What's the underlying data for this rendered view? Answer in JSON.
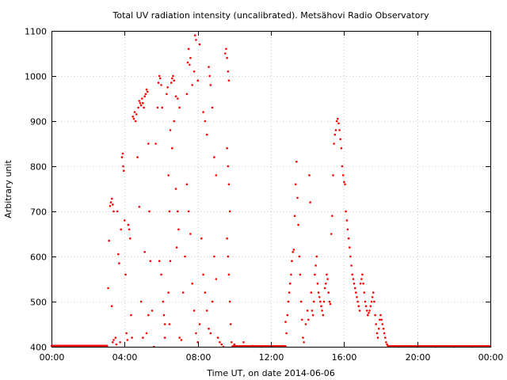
{
  "chart_data": {
    "type": "scatter",
    "title": "Total UV radiation intensity (uncalibrated). Metsähovi Radio Observatory",
    "xlabel": "Time UT, on date 2014-06-06",
    "ylabel": "Arbitrary unit",
    "xlim": [
      0,
      24
    ],
    "ylim": [
      400,
      1100
    ],
    "x_ticks": [
      0,
      4,
      8,
      12,
      16,
      20,
      24
    ],
    "x_tick_labels": [
      "00:00",
      "04:00",
      "08:00",
      "12:00",
      "16:00",
      "20:00",
      "00:00"
    ],
    "y_ticks": [
      400,
      500,
      600,
      700,
      800,
      900,
      1000,
      1100
    ],
    "y_tick_labels": [
      "400",
      "500",
      "600",
      "700",
      "800",
      "900",
      "1000",
      "1100"
    ],
    "grid": true,
    "marker_color": "#ff0000",
    "series": [
      {
        "points": [
          [
            3.1,
            530
          ],
          [
            3.15,
            635
          ],
          [
            3.2,
            712
          ],
          [
            3.25,
            720
          ],
          [
            3.3,
            728
          ],
          [
            3.35,
            715
          ],
          [
            3.4,
            700
          ],
          [
            3.3,
            490
          ],
          [
            3.35,
            410
          ],
          [
            3.4,
            415
          ],
          [
            3.5,
            420
          ],
          [
            3.55,
            405
          ],
          [
            3.6,
            700
          ],
          [
            3.65,
            605
          ],
          [
            3.7,
            585
          ],
          [
            3.75,
            410
          ],
          [
            3.8,
            660
          ],
          [
            3.85,
            820
          ],
          [
            3.9,
            828
          ],
          [
            3.92,
            800
          ],
          [
            3.95,
            790
          ],
          [
            4.0,
            680
          ],
          [
            4.05,
            560
          ],
          [
            4.1,
            430
          ],
          [
            4.15,
            415
          ],
          [
            4.2,
            670
          ],
          [
            4.25,
            660
          ],
          [
            4.3,
            640
          ],
          [
            4.35,
            470
          ],
          [
            4.4,
            420
          ],
          [
            4.45,
            910
          ],
          [
            4.5,
            905
          ],
          [
            4.55,
            920
          ],
          [
            4.6,
            900
          ],
          [
            4.65,
            915
          ],
          [
            4.7,
            820
          ],
          [
            4.75,
            930
          ],
          [
            4.8,
            945
          ],
          [
            4.85,
            940
          ],
          [
            4.9,
            935
          ],
          [
            4.95,
            950
          ],
          [
            5.0,
            940
          ],
          [
            5.05,
            930
          ],
          [
            5.1,
            955
          ],
          [
            5.15,
            960
          ],
          [
            5.2,
            970
          ],
          [
            5.25,
            965
          ],
          [
            5.3,
            850
          ],
          [
            5.35,
            700
          ],
          [
            5.4,
            590
          ],
          [
            4.8,
            710
          ],
          [
            4.9,
            500
          ],
          [
            5.0,
            420
          ],
          [
            5.1,
            610
          ],
          [
            5.2,
            430
          ],
          [
            5.3,
            470
          ],
          [
            5.5,
            480
          ],
          [
            5.6,
            400
          ],
          [
            5.7,
            850
          ],
          [
            5.8,
            930
          ],
          [
            5.85,
            985
          ],
          [
            5.9,
            1000
          ],
          [
            5.95,
            995
          ],
          [
            6.0,
            980
          ],
          [
            6.05,
            930
          ],
          [
            5.9,
            590
          ],
          [
            6.0,
            560
          ],
          [
            6.1,
            500
          ],
          [
            6.15,
            470
          ],
          [
            6.2,
            450
          ],
          [
            6.3,
            960
          ],
          [
            6.35,
            975
          ],
          [
            6.4,
            780
          ],
          [
            6.45,
            700
          ],
          [
            6.5,
            880
          ],
          [
            6.55,
            985
          ],
          [
            6.6,
            995
          ],
          [
            6.65,
            1000
          ],
          [
            6.7,
            990
          ],
          [
            6.8,
            955
          ],
          [
            6.9,
            950
          ],
          [
            7.0,
            930
          ],
          [
            6.6,
            840
          ],
          [
            6.7,
            900
          ],
          [
            6.8,
            750
          ],
          [
            6.85,
            620
          ],
          [
            6.9,
            700
          ],
          [
            6.95,
            660
          ],
          [
            6.5,
            590
          ],
          [
            6.4,
            520
          ],
          [
            6.45,
            450
          ],
          [
            6.2,
            420
          ],
          [
            7.0,
            420
          ],
          [
            7.1,
            415
          ],
          [
            7.2,
            520
          ],
          [
            7.3,
            600
          ],
          [
            7.4,
            960
          ],
          [
            7.45,
            1030
          ],
          [
            7.5,
            1060
          ],
          [
            7.55,
            1025
          ],
          [
            7.6,
            1040
          ],
          [
            7.7,
            980
          ],
          [
            7.8,
            1010
          ],
          [
            7.85,
            1090
          ],
          [
            7.9,
            1080
          ],
          [
            8.0,
            990
          ],
          [
            8.1,
            1070
          ],
          [
            7.4,
            760
          ],
          [
            7.5,
            700
          ],
          [
            7.6,
            650
          ],
          [
            7.7,
            540
          ],
          [
            7.8,
            480
          ],
          [
            7.9,
            430
          ],
          [
            8.0,
            410
          ],
          [
            8.1,
            450
          ],
          [
            8.2,
            640
          ],
          [
            8.3,
            920
          ],
          [
            8.4,
            900
          ],
          [
            8.5,
            870
          ],
          [
            8.6,
            1020
          ],
          [
            8.65,
            1000
          ],
          [
            8.7,
            980
          ],
          [
            8.8,
            930
          ],
          [
            8.9,
            820
          ],
          [
            9.0,
            780
          ],
          [
            8.3,
            560
          ],
          [
            8.4,
            520
          ],
          [
            8.5,
            480
          ],
          [
            8.6,
            440
          ],
          [
            8.7,
            430
          ],
          [
            8.8,
            500
          ],
          [
            8.9,
            600
          ],
          [
            9.0,
            550
          ],
          [
            9.1,
            420
          ],
          [
            9.2,
            410
          ],
          [
            9.3,
            405
          ],
          [
            9.4,
            400
          ],
          [
            9.5,
            1050
          ],
          [
            9.55,
            1060
          ],
          [
            9.6,
            1040
          ],
          [
            9.65,
            1010
          ],
          [
            9.7,
            990
          ],
          [
            9.6,
            840
          ],
          [
            9.65,
            800
          ],
          [
            9.7,
            760
          ],
          [
            9.75,
            700
          ],
          [
            9.6,
            640
          ],
          [
            9.65,
            600
          ],
          [
            9.7,
            560
          ],
          [
            9.75,
            500
          ],
          [
            9.8,
            450
          ],
          [
            9.85,
            410
          ],
          [
            10.0,
            405
          ],
          [
            10.5,
            410
          ],
          [
            11.0,
            402
          ],
          [
            11.5,
            400
          ],
          [
            12.8,
            455
          ],
          [
            12.85,
            430
          ],
          [
            12.9,
            470
          ],
          [
            12.95,
            500
          ],
          [
            13.0,
            520
          ],
          [
            13.05,
            540
          ],
          [
            13.1,
            560
          ],
          [
            13.15,
            590
          ],
          [
            13.2,
            610
          ],
          [
            13.25,
            615
          ],
          [
            13.3,
            690
          ],
          [
            13.35,
            760
          ],
          [
            13.4,
            810
          ],
          [
            13.45,
            730
          ],
          [
            13.5,
            670
          ],
          [
            13.55,
            600
          ],
          [
            13.6,
            560
          ],
          [
            13.65,
            500
          ],
          [
            13.7,
            460
          ],
          [
            13.75,
            420
          ],
          [
            13.8,
            410
          ],
          [
            13.9,
            450
          ],
          [
            14.0,
            480
          ],
          [
            14.05,
            460
          ],
          [
            14.1,
            780
          ],
          [
            14.15,
            720
          ],
          [
            14.2,
            520
          ],
          [
            14.25,
            480
          ],
          [
            14.3,
            470
          ],
          [
            14.35,
            500
          ],
          [
            14.4,
            560
          ],
          [
            14.45,
            580
          ],
          [
            14.5,
            600
          ],
          [
            14.55,
            540
          ],
          [
            14.6,
            520
          ],
          [
            14.65,
            510
          ],
          [
            14.7,
            500
          ],
          [
            14.75,
            490
          ],
          [
            14.8,
            480
          ],
          [
            14.85,
            470
          ],
          [
            14.9,
            500
          ],
          [
            14.95,
            530
          ],
          [
            15.0,
            540
          ],
          [
            15.05,
            560
          ],
          [
            15.1,
            550
          ],
          [
            15.15,
            520
          ],
          [
            15.2,
            500
          ],
          [
            15.25,
            495
          ],
          [
            15.3,
            650
          ],
          [
            15.35,
            690
          ],
          [
            15.4,
            780
          ],
          [
            15.45,
            850
          ],
          [
            15.5,
            870
          ],
          [
            15.55,
            880
          ],
          [
            15.6,
            900
          ],
          [
            15.65,
            905
          ],
          [
            15.7,
            895
          ],
          [
            15.75,
            880
          ],
          [
            15.8,
            860
          ],
          [
            15.85,
            840
          ],
          [
            15.9,
            800
          ],
          [
            15.95,
            780
          ],
          [
            16.0,
            765
          ],
          [
            16.05,
            760
          ],
          [
            16.1,
            700
          ],
          [
            16.15,
            680
          ],
          [
            16.2,
            660
          ],
          [
            16.25,
            640
          ],
          [
            16.3,
            620
          ],
          [
            16.35,
            600
          ],
          [
            16.4,
            580
          ],
          [
            16.45,
            560
          ],
          [
            16.5,
            550
          ],
          [
            16.55,
            540
          ],
          [
            16.6,
            530
          ],
          [
            16.65,
            520
          ],
          [
            16.7,
            510
          ],
          [
            16.75,
            500
          ],
          [
            16.8,
            490
          ],
          [
            16.85,
            480
          ],
          [
            16.9,
            540
          ],
          [
            16.95,
            550
          ],
          [
            17.0,
            560
          ],
          [
            17.05,
            540
          ],
          [
            17.1,
            520
          ],
          [
            17.15,
            500
          ],
          [
            17.2,
            490
          ],
          [
            17.25,
            480
          ],
          [
            17.3,
            470
          ],
          [
            17.35,
            475
          ],
          [
            17.4,
            480
          ],
          [
            17.45,
            490
          ],
          [
            17.5,
            500
          ],
          [
            17.55,
            510
          ],
          [
            17.6,
            520
          ],
          [
            17.65,
            500
          ],
          [
            17.7,
            470
          ],
          [
            17.75,
            450
          ],
          [
            17.8,
            430
          ],
          [
            17.85,
            420
          ],
          [
            17.9,
            440
          ],
          [
            17.95,
            460
          ],
          [
            18.0,
            470
          ],
          [
            18.05,
            460
          ],
          [
            18.1,
            450
          ],
          [
            18.15,
            440
          ],
          [
            18.2,
            430
          ],
          [
            18.25,
            420
          ],
          [
            18.3,
            410
          ],
          [
            18.35,
            405
          ],
          [
            18.4,
            402
          ],
          [
            18.5,
            401
          ],
          [
            19.0,
            400
          ],
          [
            20.0,
            400
          ],
          [
            21.0,
            400
          ],
          [
            22.0,
            400
          ],
          [
            23.0,
            400
          ]
        ]
      }
    ]
  }
}
